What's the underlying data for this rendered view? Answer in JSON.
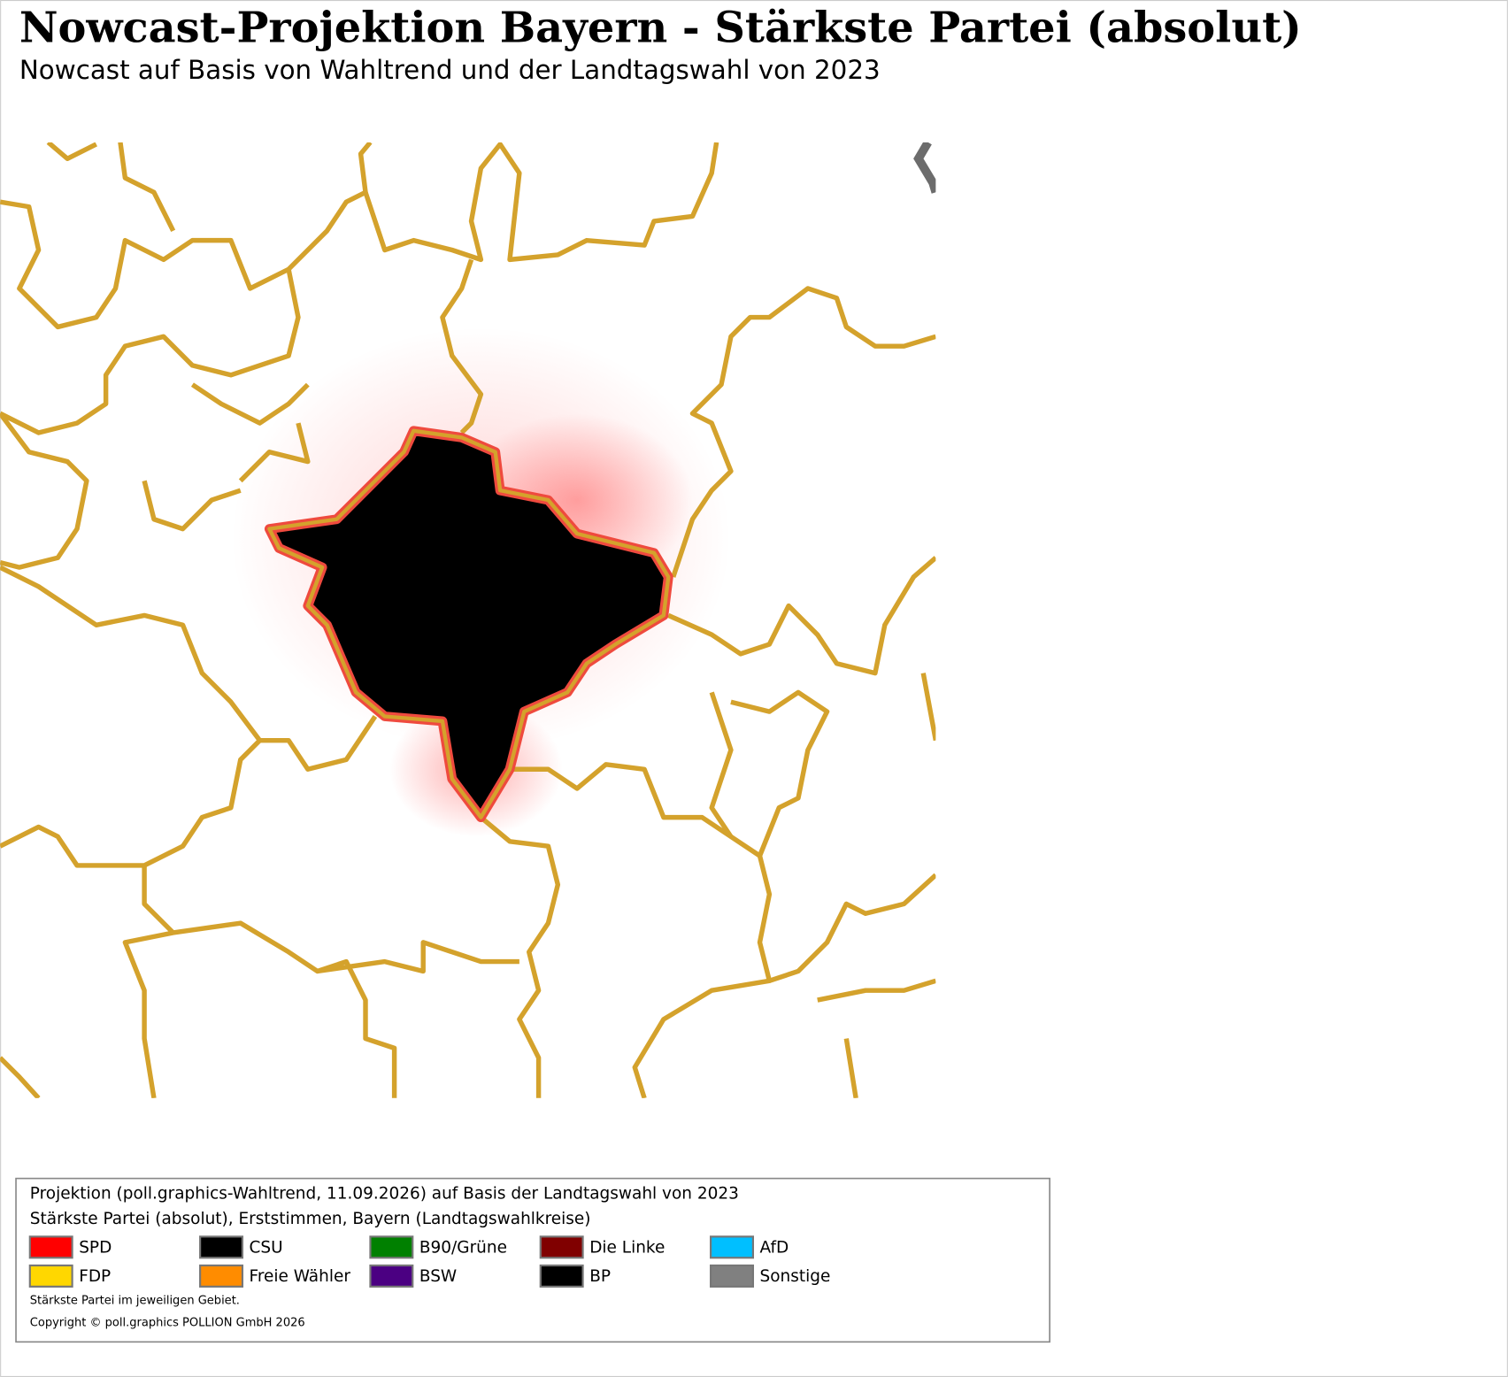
{
  "header": {
    "title": "Nowcast-Projektion Bayern - Stärkste Partei (absolut)",
    "subtitle": "Nowcast auf Basis von Wahltrend und der Landtagswahl von 2023"
  },
  "legend": {
    "lines": [
      "Projektion (poll.graphics-Wahltrend, 11.09.2026) auf Basis der Landtagswahl von 2023",
      "Stärkste Partei (absolut), Erststimmen, Bayern (Landtagswahlkreise)"
    ],
    "items": [
      {
        "label": "SPD",
        "color": "#ff0000"
      },
      {
        "label": "CSU",
        "color": "#000000"
      },
      {
        "label": "B90/Grüne",
        "color": "#008000"
      },
      {
        "label": "Die Linke",
        "color": "#800000"
      },
      {
        "label": "AfD",
        "color": "#00bfff"
      },
      {
        "label": "FDP",
        "color": "#ffd700"
      },
      {
        "label": "Freie Wähler",
        "color": "#ff8c00"
      },
      {
        "label": "BSW",
        "color": "#4b0082"
      },
      {
        "label": "BP",
        "color": "#000000"
      },
      {
        "label": "Sonstige",
        "color": "#808080"
      }
    ],
    "notes": [
      "Stärkste Partei im jeweiligen Gebiet.",
      "Copyright © poll.graphics POLLION GmbH 2026"
    ]
  }
}
